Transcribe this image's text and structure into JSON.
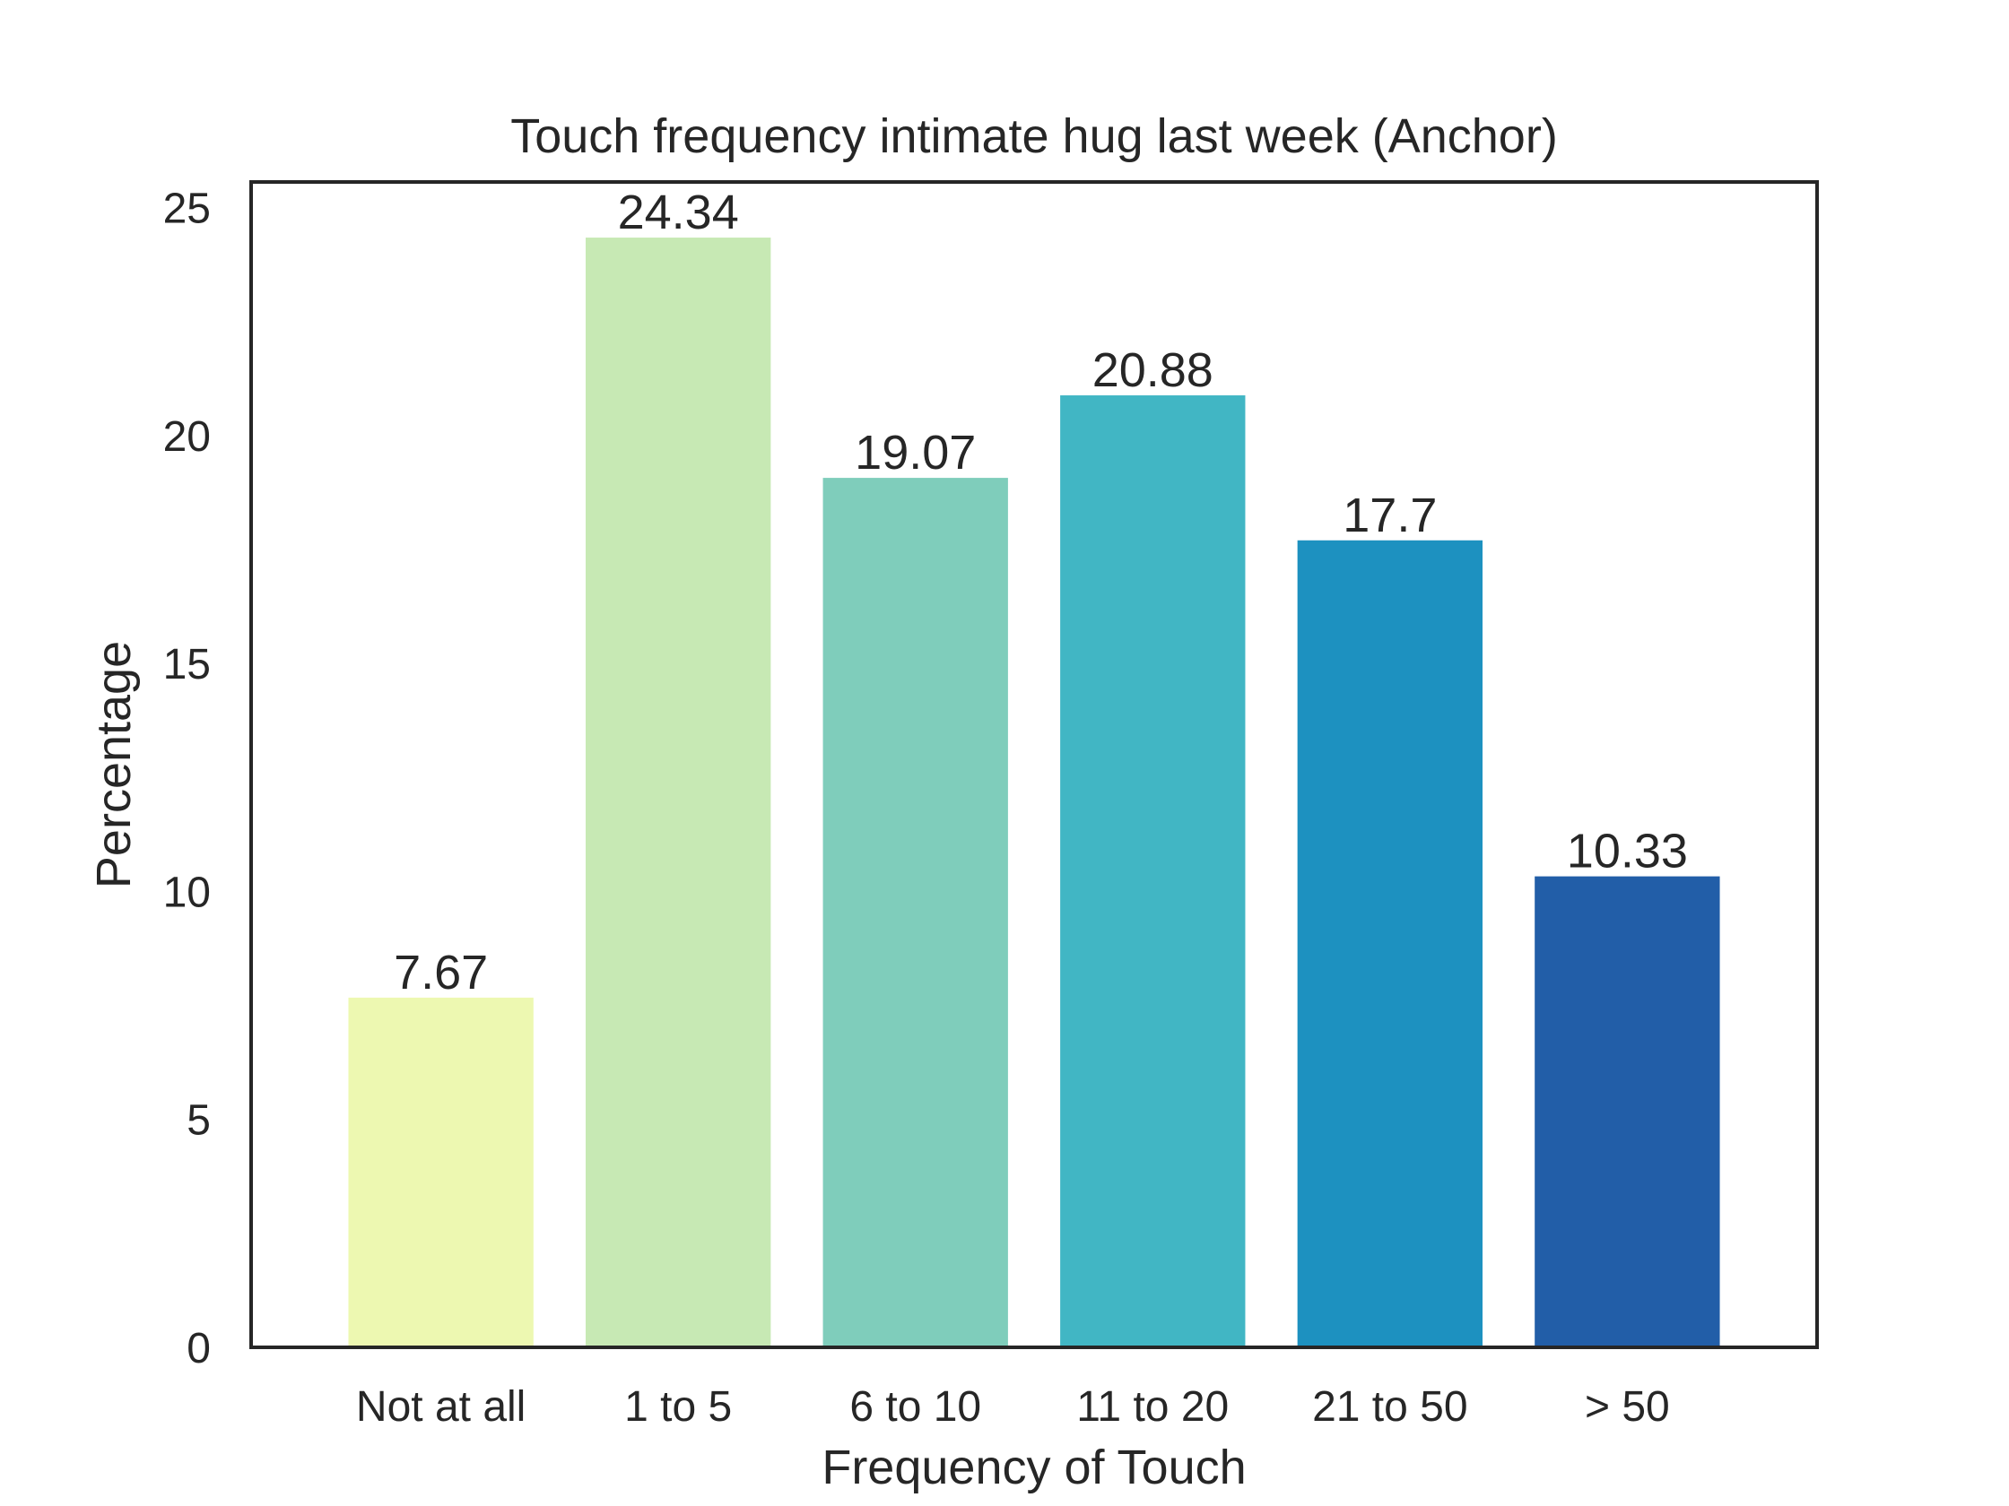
{
  "chart_data": {
    "type": "bar",
    "title": "Touch frequency intimate hug last week (Anchor)",
    "xlabel": "Frequency of Touch",
    "ylabel": "Percentage",
    "categories": [
      "Not at all",
      "1 to 5",
      "6 to 10",
      "11 to 20",
      "21 to 50",
      "> 50"
    ],
    "values": [
      7.67,
      24.34,
      19.07,
      20.88,
      17.7,
      10.33
    ],
    "data_labels": [
      "7.67",
      "24.34",
      "19.07",
      "20.88",
      "17.7",
      "10.33"
    ],
    "colors": [
      "#edf8b1",
      "#c7e9b4",
      "#7fcdbb",
      "#41b6c4",
      "#1d91c0",
      "#225ea8"
    ],
    "ylim": [
      0,
      25.56
    ],
    "yticks": [
      0,
      5,
      10,
      15,
      20,
      25
    ],
    "ytick_labels": [
      "0",
      "5",
      "10",
      "15",
      "20",
      "25"
    ],
    "grid": false,
    "legend": "none"
  }
}
